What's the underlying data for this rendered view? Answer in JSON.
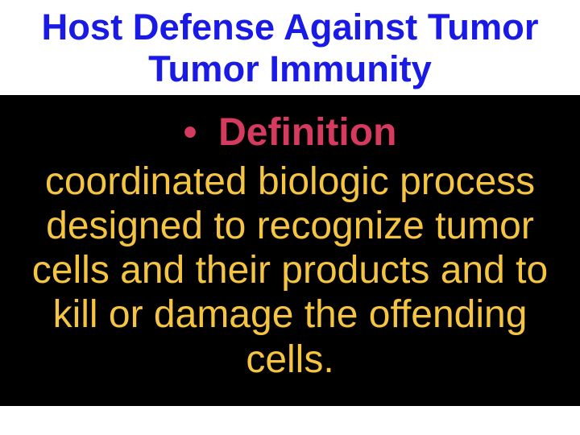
{
  "slide": {
    "background_color": "#ffffff",
    "title": {
      "line1": "Host Defense Against Tumor",
      "line2": "Tumor Immunity",
      "color": "#1a1ae6",
      "font_size_pt": 34,
      "font_weight": 700
    },
    "content_block": {
      "background_color": "#000000",
      "bullet": {
        "symbol": "•",
        "label": "Definition",
        "color": "#d63a5f",
        "font_size_pt": 36,
        "font_weight": 700
      },
      "body": {
        "text": "coordinated biologic process designed to recognize tumor cells and their products and to kill or damage the offending cells.",
        "color": "#f5c542",
        "font_size_pt": 36,
        "font_weight": 400
      }
    }
  }
}
